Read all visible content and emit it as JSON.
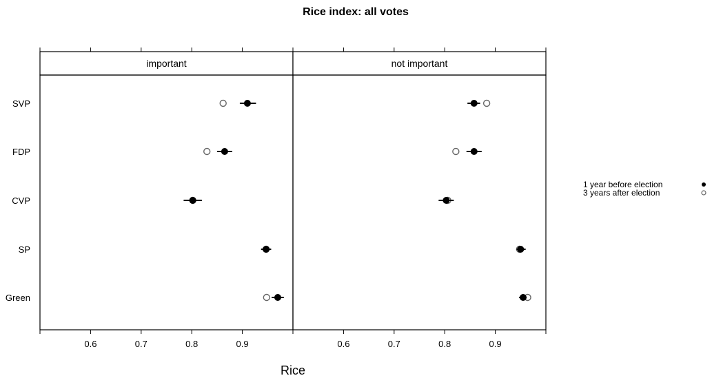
{
  "chart_data": {
    "type": "scatter",
    "title": "Rice index: all votes",
    "xlabel": "Rice",
    "ylabel": "",
    "xlim": [
      0.5,
      1.0
    ],
    "xticks": [
      "0.6",
      "0.7",
      "0.8",
      "0.9"
    ],
    "categories": [
      "SVP",
      "FDP",
      "CVP",
      "SP",
      "Green"
    ],
    "panels": [
      "important",
      "not important"
    ],
    "legend_position": "right",
    "series": [
      {
        "name": "1 year before election",
        "marker": "filled-circle",
        "color": "#000000",
        "values": {
          "important": {
            "SVP": {
              "x": 0.91,
              "lo": 0.895,
              "hi": 0.927
            },
            "FDP": {
              "x": 0.865,
              "lo": 0.85,
              "hi": 0.88
            },
            "CVP": {
              "x": 0.802,
              "lo": 0.784,
              "hi": 0.82
            },
            "SP": {
              "x": 0.947,
              "lo": 0.937,
              "hi": 0.957
            },
            "Green": {
              "x": 0.97,
              "lo": 0.958,
              "hi": 0.982
            }
          },
          "not important": {
            "SVP": {
              "x": 0.858,
              "lo": 0.845,
              "hi": 0.87
            },
            "FDP": {
              "x": 0.858,
              "lo": 0.843,
              "hi": 0.873
            },
            "CVP": {
              "x": 0.803,
              "lo": 0.788,
              "hi": 0.818
            },
            "SP": {
              "x": 0.95,
              "lo": 0.942,
              "hi": 0.96
            },
            "Green": {
              "x": 0.955,
              "lo": 0.947,
              "hi": 0.962
            }
          }
        }
      },
      {
        "name": "3 years after election",
        "marker": "open-circle",
        "color": "#666666",
        "values": {
          "important": {
            "SVP": {
              "x": 0.862
            },
            "FDP": {
              "x": 0.83
            },
            "CVP": {
              "x": 0.802
            },
            "SP": {
              "x": 0.947
            },
            "Green": {
              "x": 0.948
            }
          },
          "not important": {
            "SVP": {
              "x": 0.883
            },
            "FDP": {
              "x": 0.822
            },
            "CVP": {
              "x": 0.806
            },
            "SP": {
              "x": 0.948
            },
            "Green": {
              "x": 0.964
            }
          }
        }
      }
    ]
  }
}
